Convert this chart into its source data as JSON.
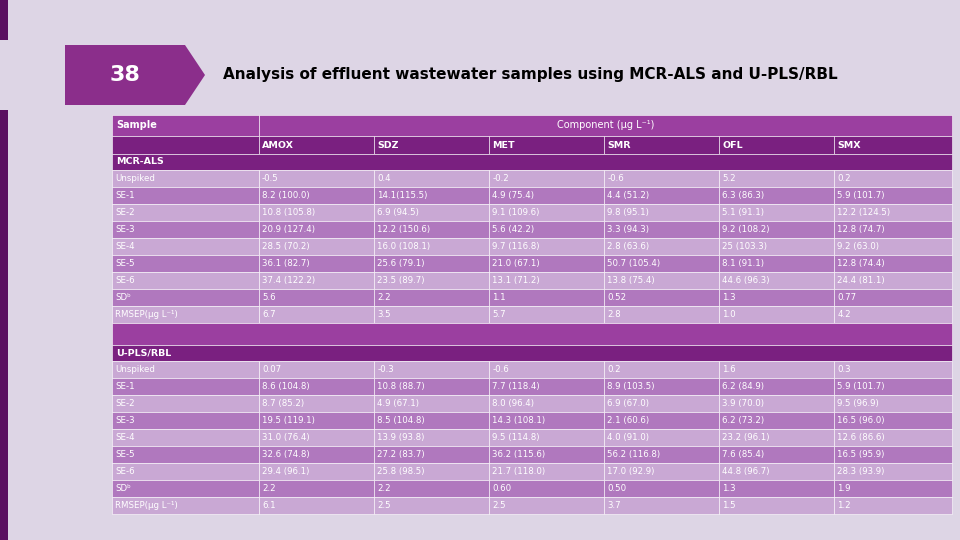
{
  "title": "Analysis of effluent wastewater samples using MCR-ALS and U-PLS/RBL",
  "slide_number": "38",
  "bg_color": "#ddd5e5",
  "arrow_color": "#8B2E8B",
  "component_header": "Component (μg L⁻¹)",
  "col_header": [
    "Sample",
    "AMOX",
    "SDZ",
    "MET",
    "SMR",
    "OFL",
    "SMX"
  ],
  "section1_label": "MCR-ALS",
  "section2_label": "U-PLS/RBL",
  "rows_section1": [
    [
      "Unspiked",
      "-0.5",
      "0.4",
      "-0.2",
      "-0.6",
      "5.2",
      "0.2"
    ],
    [
      "SE-1",
      "8.2 (100.0)",
      "14.1(115.5)",
      "4.9 (75.4)",
      "4.4 (51.2)",
      "6.3 (86.3)",
      "5.9 (101.7)"
    ],
    [
      "SE-2",
      "10.8 (105.8)",
      "6.9 (94.5)",
      "9.1 (109.6)",
      "9.8 (95.1)",
      "5.1 (91.1)",
      "12.2 (124.5)"
    ],
    [
      "SE-3",
      "20.9 (127.4)",
      "12.2 (150.6)",
      "5.6 (42.2)",
      "3.3 (94.3)",
      "9.2 (108.2)",
      "12.8 (74.7)"
    ],
    [
      "SE-4",
      "28.5 (70.2)",
      "16.0 (108.1)",
      "9.7 (116.8)",
      "2.8 (63.6)",
      "25 (103.3)",
      "9.2 (63.0)"
    ],
    [
      "SE-5",
      "36.1 (82.7)",
      "25.6 (79.1)",
      "21.0 (67.1)",
      "50.7 (105.4)",
      "8.1 (91.1)",
      "12.8 (74.4)"
    ],
    [
      "SE-6",
      "37.4 (122.2)",
      "23.5 (89.7)",
      "13.1 (71.2)",
      "13.8 (75.4)",
      "44.6 (96.3)",
      "24.4 (81.1)"
    ],
    [
      "SDᵇ",
      "5.6",
      "2.2",
      "1.1",
      "0.52",
      "1.3",
      "0.77"
    ],
    [
      "RMSEP(μg L⁻¹)",
      "6.7",
      "3.5",
      "5.7",
      "2.8",
      "1.0",
      "4.2"
    ]
  ],
  "rows_section2": [
    [
      "Unspiked",
      "0.07",
      "-0.3",
      "-0.6",
      "0.2",
      "1.6",
      "0.3"
    ],
    [
      "SE-1",
      "8.6 (104.8)",
      "10.8 (88.7)",
      "7.7 (118.4)",
      "8.9 (103.5)",
      "6.2 (84.9)",
      "5.9 (101.7)"
    ],
    [
      "SE-2",
      "8.7 (85.2)",
      "4.9 (67.1)",
      "8.0 (96.4)",
      "6.9 (67.0)",
      "3.9 (70.0)",
      "9.5 (96.9)"
    ],
    [
      "SE-3",
      "19.5 (119.1)",
      "8.5 (104.8)",
      "14.3 (108.1)",
      "2.1 (60.6)",
      "6.2 (73.2)",
      "16.5 (96.0)"
    ],
    [
      "SE-4",
      "31.0 (76.4)",
      "13.9 (93.8)",
      "9.5 (114.8)",
      "4.0 (91.0)",
      "23.2 (96.1)",
      "12.6 (86.6)"
    ],
    [
      "SE-5",
      "32.6 (74.8)",
      "27.2 (83.7)",
      "36.2 (115.6)",
      "56.2 (116.8)",
      "7.6 (85.4)",
      "16.5 (95.9)"
    ],
    [
      "SE-6",
      "29.4 (96.1)",
      "25.8 (98.5)",
      "21.7 (118.0)",
      "17.0 (92.9)",
      "44.8 (96.7)",
      "28.3 (93.9)"
    ],
    [
      "SDᵇ",
      "2.2",
      "2.2",
      "0.60",
      "0.50",
      "1.3",
      "1.9"
    ],
    [
      "RMSEP(μg L⁻¹)",
      "6.1",
      "2.5",
      "2.5",
      "3.7",
      "1.5",
      "1.2"
    ]
  ],
  "header1_bg": "#9b3fa0",
  "header2_bg": "#7a2080",
  "sec_label_bg": "#7a2080",
  "odd_bg": "#c9a8d4",
  "even_bg": "#b078be",
  "gap_bg": "#9b3fa0"
}
